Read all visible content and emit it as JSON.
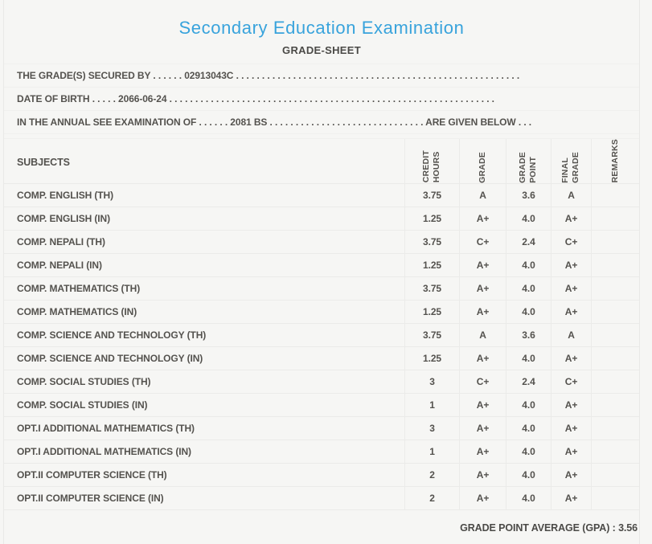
{
  "colors": {
    "accent_blue": "#38a3dc",
    "text_dark": "#54524e",
    "background": "#f6f6f4",
    "separator": "#ebebe9"
  },
  "header": {
    "title": "Secondary Education Examination",
    "subtitle": "GRADE-SHEET"
  },
  "statements": [
    "THE GRADE(S) SECURED BY . . . . . . 02913043C . . . . . . . . . . . . . . . . . . . . . . . . . . . . . . . . . . . . . . . . . . . . . . . . . . . . . . .",
    "DATE OF BIRTH . . . . . 2066-06-24 . . . . . . . . . . . . . . . . . . . . . . . . . . . . . . . . . . . . . . . . . . . . . . . . . . . . . . . . . . . . . . .",
    "IN THE ANNUAL SEE EXAMINATION OF . . . . . . 2081 BS . . . . . . . . . . . . . . . . . . . . . . . . . . . . . . ARE GIVEN BELOW . . ."
  ],
  "table": {
    "subjects_header": "SUBJECTS",
    "columns": [
      "CREDIT\nHOURS",
      "GRADE",
      "GRADE\nPOINT",
      "FINAL\nGRADE",
      "REMARKS"
    ],
    "rows": [
      {
        "subject": "COMP. ENGLISH (TH)",
        "credit_hours": "3.75",
        "grade": "A",
        "grade_point": "3.6",
        "final_grade": "A",
        "remarks": ""
      },
      {
        "subject": "COMP. ENGLISH (IN)",
        "credit_hours": "1.25",
        "grade": "A+",
        "grade_point": "4.0",
        "final_grade": "A+",
        "remarks": ""
      },
      {
        "subject": "COMP. NEPALI (TH)",
        "credit_hours": "3.75",
        "grade": "C+",
        "grade_point": "2.4",
        "final_grade": "C+",
        "remarks": ""
      },
      {
        "subject": "COMP. NEPALI (IN)",
        "credit_hours": "1.25",
        "grade": "A+",
        "grade_point": "4.0",
        "final_grade": "A+",
        "remarks": ""
      },
      {
        "subject": "COMP. MATHEMATICS (TH)",
        "credit_hours": "3.75",
        "grade": "A+",
        "grade_point": "4.0",
        "final_grade": "A+",
        "remarks": ""
      },
      {
        "subject": "COMP. MATHEMATICS (IN)",
        "credit_hours": "1.25",
        "grade": "A+",
        "grade_point": "4.0",
        "final_grade": "A+",
        "remarks": ""
      },
      {
        "subject": "COMP. SCIENCE AND TECHNOLOGY (TH)",
        "credit_hours": "3.75",
        "grade": "A",
        "grade_point": "3.6",
        "final_grade": "A",
        "remarks": ""
      },
      {
        "subject": "COMP. SCIENCE AND TECHNOLOGY (IN)",
        "credit_hours": "1.25",
        "grade": "A+",
        "grade_point": "4.0",
        "final_grade": "A+",
        "remarks": ""
      },
      {
        "subject": "COMP. SOCIAL STUDIES (TH)",
        "credit_hours": "3",
        "grade": "C+",
        "grade_point": "2.4",
        "final_grade": "C+",
        "remarks": ""
      },
      {
        "subject": "COMP. SOCIAL STUDIES (IN)",
        "credit_hours": "1",
        "grade": "A+",
        "grade_point": "4.0",
        "final_grade": "A+",
        "remarks": ""
      },
      {
        "subject": "OPT.I ADDITIONAL MATHEMATICS (TH)",
        "credit_hours": "3",
        "grade": "A+",
        "grade_point": "4.0",
        "final_grade": "A+",
        "remarks": ""
      },
      {
        "subject": "OPT.I ADDITIONAL MATHEMATICS (IN)",
        "credit_hours": "1",
        "grade": "A+",
        "grade_point": "4.0",
        "final_grade": "A+",
        "remarks": ""
      },
      {
        "subject": "OPT.II COMPUTER SCIENCE (TH)",
        "credit_hours": "2",
        "grade": "A+",
        "grade_point": "4.0",
        "final_grade": "A+",
        "remarks": ""
      },
      {
        "subject": "OPT.II COMPUTER SCIENCE (IN)",
        "credit_hours": "2",
        "grade": "A+",
        "grade_point": "4.0",
        "final_grade": "A+",
        "remarks": ""
      }
    ]
  },
  "footer": {
    "gpa_text": "GRADE POINT AVERAGE (GPA) : 3.56"
  }
}
